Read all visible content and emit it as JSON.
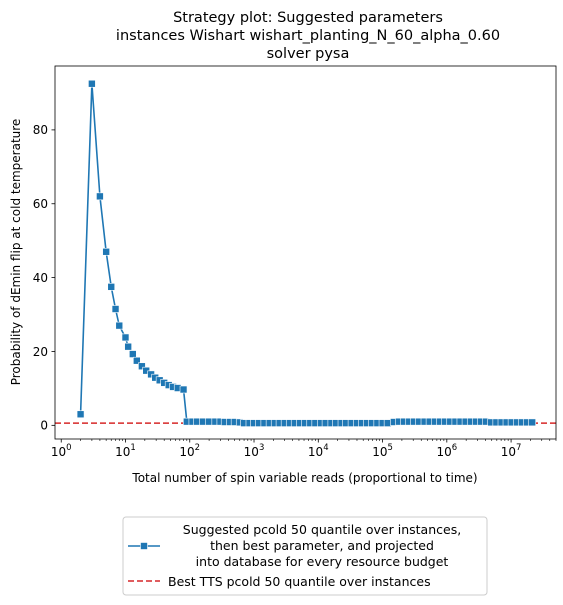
{
  "chart_data": {
    "type": "line",
    "title_lines": [
      "Strategy plot: Suggested parameters",
      "instances Wishart wishart_planting_N_60_alpha_0.60",
      "solver pysa"
    ],
    "xlabel": "Total number of spin variable reads (proportional to time)",
    "ylabel": "Probability of dEmin flip at cold temperature",
    "xscale": "log",
    "xlim": [
      0.8,
      50000000
    ],
    "ylim": [
      -3.7,
      97.3
    ],
    "x_ticks": [
      {
        "value": 1,
        "base": "10",
        "exp": "0"
      },
      {
        "value": 10,
        "base": "10",
        "exp": "1"
      },
      {
        "value": 100,
        "base": "10",
        "exp": "2"
      },
      {
        "value": 1000,
        "base": "10",
        "exp": "3"
      },
      {
        "value": 10000,
        "base": "10",
        "exp": "4"
      },
      {
        "value": 100000,
        "base": "10",
        "exp": "5"
      },
      {
        "value": 1000000,
        "base": "10",
        "exp": "6"
      },
      {
        "value": 10000000,
        "base": "10",
        "exp": "7"
      }
    ],
    "y_ticks": [
      0,
      20,
      40,
      60,
      80
    ],
    "grid": false,
    "legend_position": "below-center",
    "series": [
      {
        "name": "Suggested pcold 50 quantile over instances,\n  then best parameter, and projected\n into database for every resource budget",
        "name_lines": [
          "Suggested pcold 50 quantile over instances,",
          "then best parameter, and projected",
          "into database for every resource budget"
        ],
        "color": "#1f77b4",
        "marker": "square",
        "points": [
          [
            2,
            3.0
          ],
          [
            3,
            92.5
          ],
          [
            4,
            62.0
          ],
          [
            5,
            47.0
          ],
          [
            6,
            37.5
          ],
          [
            7,
            31.5
          ],
          [
            8,
            27.0
          ],
          [
            10,
            23.8
          ],
          [
            11,
            21.3
          ],
          [
            13,
            19.3
          ],
          [
            15,
            17.5
          ],
          [
            18,
            16.0
          ],
          [
            21,
            14.8
          ],
          [
            25,
            13.8
          ],
          [
            29,
            12.9
          ],
          [
            34,
            12.2
          ],
          [
            40,
            11.5
          ],
          [
            47,
            10.9
          ],
          [
            55,
            10.4
          ],
          [
            65,
            10.1
          ],
          [
            80,
            9.7
          ],
          [
            90,
            1.0
          ],
          [
            110,
            1.0
          ],
          [
            130,
            1.0
          ],
          [
            160,
            1.0
          ],
          [
            200,
            1.0
          ],
          [
            250,
            1.0
          ],
          [
            300,
            1.0
          ],
          [
            350,
            0.9
          ],
          [
            420,
            0.9
          ],
          [
            500,
            0.9
          ],
          [
            600,
            0.8
          ],
          [
            700,
            0.6
          ],
          [
            850,
            0.6
          ],
          [
            1000,
            0.6
          ],
          [
            1200,
            0.6
          ],
          [
            1450,
            0.6
          ],
          [
            1750,
            0.6
          ],
          [
            2100,
            0.6
          ],
          [
            2500,
            0.6
          ],
          [
            3000,
            0.6
          ],
          [
            3600,
            0.6
          ],
          [
            4300,
            0.6
          ],
          [
            5200,
            0.6
          ],
          [
            6200,
            0.6
          ],
          [
            7500,
            0.6
          ],
          [
            9000,
            0.6
          ],
          [
            11000,
            0.6
          ],
          [
            13000,
            0.6
          ],
          [
            16000,
            0.6
          ],
          [
            19000,
            0.6
          ],
          [
            23000,
            0.6
          ],
          [
            27000,
            0.6
          ],
          [
            33000,
            0.6
          ],
          [
            40000,
            0.6
          ],
          [
            48000,
            0.6
          ],
          [
            57000,
            0.6
          ],
          [
            69000,
            0.6
          ],
          [
            83000,
            0.6
          ],
          [
            100000,
            0.6
          ],
          [
            120000,
            0.6
          ],
          [
            150000,
            0.9
          ],
          [
            180000,
            1.0
          ],
          [
            215000,
            1.0
          ],
          [
            260000,
            1.0
          ],
          [
            310000,
            1.0
          ],
          [
            370000,
            1.0
          ],
          [
            450000,
            1.0
          ],
          [
            540000,
            1.0
          ],
          [
            650000,
            1.0
          ],
          [
            780000,
            1.0
          ],
          [
            940000,
            1.0
          ],
          [
            1130000,
            1.0
          ],
          [
            1360000,
            1.0
          ],
          [
            1630000,
            1.0
          ],
          [
            1960000,
            1.0
          ],
          [
            2360000,
            1.0
          ],
          [
            2830000,
            1.0
          ],
          [
            3400000,
            1.0
          ],
          [
            4100000,
            1.0
          ],
          [
            4900000,
            0.8
          ],
          [
            5900000,
            0.8
          ],
          [
            7100000,
            0.8
          ],
          [
            8500000,
            0.8
          ],
          [
            10200000,
            0.8
          ],
          [
            12300000,
            0.8
          ],
          [
            14800000,
            0.8
          ],
          [
            17700000,
            0.8
          ],
          [
            21300000,
            0.8
          ]
        ]
      },
      {
        "name": "Best TTS pcold 50 quantile over instances",
        "color": "#d62728",
        "style": "dashed",
        "y": 0.6
      }
    ]
  }
}
